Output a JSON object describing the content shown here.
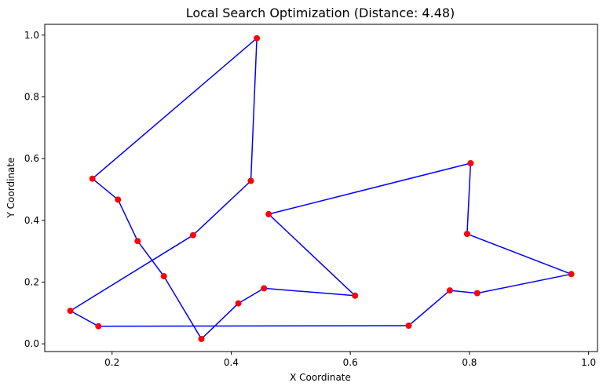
{
  "chart_data": {
    "type": "line",
    "title": "Local Search Optimization (Distance: 4.48)",
    "xlabel": "X Coordinate",
    "ylabel": "Y Coordinate",
    "xlim": [
      0.087,
      1.015
    ],
    "ylim": [
      -0.025,
      1.035
    ],
    "xticks": [
      "0.2",
      "0.4",
      "0.6",
      "0.8",
      "1.0"
    ],
    "yticks": [
      "0.0",
      "0.2",
      "0.4",
      "0.6",
      "0.8",
      "1.0"
    ],
    "grid": false,
    "line_color": "#0000ff",
    "point_color": "#ff0000",
    "points": [
      {
        "x": 0.443,
        "y": 0.99
      },
      {
        "x": 0.433,
        "y": 0.528
      },
      {
        "x": 0.336,
        "y": 0.352
      },
      {
        "x": 0.13,
        "y": 0.107
      },
      {
        "x": 0.177,
        "y": 0.057
      },
      {
        "x": 0.698,
        "y": 0.059
      },
      {
        "x": 0.767,
        "y": 0.173
      },
      {
        "x": 0.813,
        "y": 0.164
      },
      {
        "x": 0.971,
        "y": 0.226
      },
      {
        "x": 0.796,
        "y": 0.356
      },
      {
        "x": 0.802,
        "y": 0.585
      },
      {
        "x": 0.463,
        "y": 0.42
      },
      {
        "x": 0.608,
        "y": 0.156
      },
      {
        "x": 0.455,
        "y": 0.18
      },
      {
        "x": 0.412,
        "y": 0.131
      },
      {
        "x": 0.35,
        "y": 0.016
      },
      {
        "x": 0.287,
        "y": 0.219
      },
      {
        "x": 0.243,
        "y": 0.333
      },
      {
        "x": 0.21,
        "y": 0.467
      },
      {
        "x": 0.167,
        "y": 0.535
      },
      {
        "x": 0.443,
        "y": 0.99
      }
    ]
  }
}
